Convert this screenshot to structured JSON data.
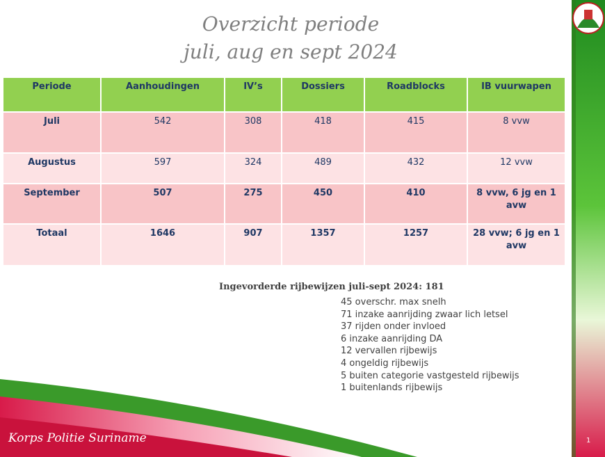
{
  "title": {
    "line1": "Overzicht  periode",
    "line2": "juli, aug en sept 2024"
  },
  "table": {
    "header": [
      "Periode",
      "Aanhoudingen",
      "IV’s",
      "Dossiers",
      "Roadblocks",
      "IB vuurwapen"
    ],
    "rows": [
      [
        "Juli",
        "542",
        "308",
        "418",
        "415",
        "8 vvw"
      ],
      [
        "Augustus",
        "597",
        "324",
        "489",
        "432",
        "12 vvw"
      ],
      [
        "September",
        "507",
        "275",
        "450",
        "410",
        "8 vvw, 6 jg en 1 avw"
      ],
      [
        "Totaal",
        "1646",
        "907",
        "1357",
        "1257",
        "28 vvw; 6 jg en 1 avw"
      ]
    ]
  },
  "summary": {
    "title": "Ingevorderde rijbewijzen juli-sept 2024: 181",
    "items": [
      "45 overschr. max snelh",
      "71  inzake aanrijding zwaar lich letsel",
      "37 rijden onder invloed",
      "6 inzake aanrijding DA",
      "12 vervallen rijbewijs",
      "4 ongeldig rijbewijs",
      "5 buiten categorie vastgesteld rijbewijs",
      "1 buitenlands rijbewijs"
    ]
  },
  "footer": {
    "organization": "Korps Politie Suriname",
    "page": "1"
  }
}
